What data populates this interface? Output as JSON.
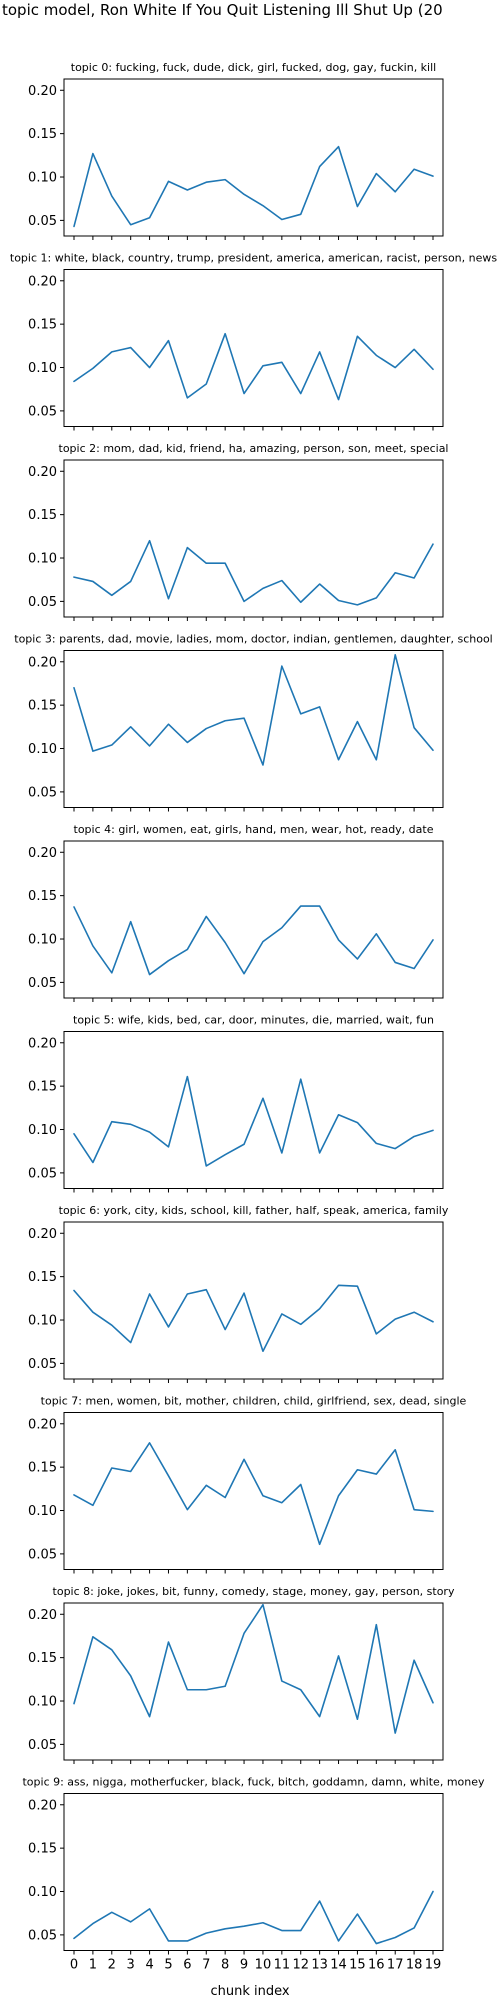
{
  "figure": {
    "suptitle": "topic model, Ron White If You Quit Listening Ill Shut Up (20",
    "xlabel": "chunk index"
  },
  "chart_data": {
    "type": "line",
    "x": [
      0,
      1,
      2,
      3,
      4,
      5,
      6,
      7,
      8,
      9,
      10,
      11,
      12,
      13,
      14,
      15,
      16,
      17,
      18,
      19
    ],
    "xticklabels": [
      "0",
      "1",
      "2",
      "3",
      "4",
      "5",
      "6",
      "7",
      "8",
      "9",
      "10",
      "11",
      "12",
      "13",
      "14",
      "15",
      "16",
      "17",
      "18",
      "19"
    ],
    "xlabel": "chunk index",
    "ylim": [
      0.032,
      0.213
    ],
    "yticks": [
      0.05,
      0.1,
      0.15,
      0.2
    ],
    "yticklabels": [
      "0.05",
      "0.10",
      "0.15",
      "0.20"
    ],
    "grid": false,
    "line_color": "#1f77b4",
    "panels": [
      {
        "title": "topic 0: fucking, fuck, dude, dick, girl, fucked, dog, gay, fuckin, kill",
        "values": [
          0.043,
          0.127,
          0.078,
          0.045,
          0.053,
          0.095,
          0.085,
          0.094,
          0.097,
          0.08,
          0.067,
          0.051,
          0.057,
          0.112,
          0.135,
          0.066,
          0.104,
          0.083,
          0.109,
          0.101
        ]
      },
      {
        "title": "topic 1: white, black, country, trump, president, america, american, racist, person, news",
        "values": [
          0.084,
          0.099,
          0.118,
          0.123,
          0.1,
          0.131,
          0.065,
          0.081,
          0.139,
          0.07,
          0.102,
          0.106,
          0.07,
          0.118,
          0.063,
          0.136,
          0.114,
          0.1,
          0.121,
          0.098
        ]
      },
      {
        "title": "topic 2: mom, dad, kid, friend, ha, amazing, person, son, meet, special",
        "values": [
          0.078,
          0.073,
          0.057,
          0.073,
          0.12,
          0.053,
          0.112,
          0.094,
          0.094,
          0.05,
          0.065,
          0.074,
          0.049,
          0.07,
          0.051,
          0.046,
          0.054,
          0.083,
          0.077,
          0.116
        ]
      },
      {
        "title": "topic 3: parents, dad, movie, ladies, mom, doctor, indian, gentlemen, daughter, school",
        "values": [
          0.17,
          0.097,
          0.104,
          0.125,
          0.103,
          0.128,
          0.107,
          0.123,
          0.132,
          0.135,
          0.081,
          0.195,
          0.14,
          0.148,
          0.087,
          0.131,
          0.087,
          0.208,
          0.124,
          0.098
        ]
      },
      {
        "title": "topic 4: girl, women, eat, girls, hand, men, wear, hot, ready, date",
        "values": [
          0.137,
          0.092,
          0.061,
          0.12,
          0.059,
          0.075,
          0.088,
          0.126,
          0.096,
          0.06,
          0.097,
          0.113,
          0.138,
          0.138,
          0.099,
          0.077,
          0.106,
          0.073,
          0.066,
          0.099
        ]
      },
      {
        "title": "topic 5: wife, kids, bed, car, door, minutes, die, married, wait, fun",
        "values": [
          0.095,
          0.062,
          0.109,
          0.106,
          0.097,
          0.08,
          0.161,
          0.058,
          0.071,
          0.083,
          0.136,
          0.073,
          0.158,
          0.073,
          0.117,
          0.108,
          0.084,
          0.078,
          0.092,
          0.099
        ]
      },
      {
        "title": "topic 6: york, city, kids, school, kill, father, half, speak, america, family",
        "values": [
          0.134,
          0.109,
          0.094,
          0.074,
          0.13,
          0.092,
          0.13,
          0.135,
          0.089,
          0.131,
          0.064,
          0.107,
          0.095,
          0.113,
          0.14,
          0.139,
          0.084,
          0.101,
          0.109,
          0.098
        ]
      },
      {
        "title": "topic 7: men, women, bit, mother, children, child, girlfriend, sex, dead, single",
        "values": [
          0.118,
          0.106,
          0.149,
          0.145,
          0.178,
          0.14,
          0.101,
          0.129,
          0.115,
          0.159,
          0.117,
          0.109,
          0.13,
          0.061,
          0.117,
          0.147,
          0.142,
          0.17,
          0.101,
          0.099
        ]
      },
      {
        "title": "topic 8: joke, jokes, bit, funny, comedy, stage, money, gay, person, story",
        "values": [
          0.097,
          0.174,
          0.159,
          0.129,
          0.082,
          0.168,
          0.113,
          0.113,
          0.117,
          0.178,
          0.211,
          0.123,
          0.113,
          0.082,
          0.152,
          0.079,
          0.188,
          0.063,
          0.147,
          0.098
        ]
      },
      {
        "title": "topic 9: ass, nigga, motherfucker, black, fuck, bitch, goddamn, damn, white, money",
        "values": [
          0.046,
          0.063,
          0.076,
          0.065,
          0.08,
          0.043,
          0.043,
          0.052,
          0.057,
          0.06,
          0.064,
          0.055,
          0.055,
          0.089,
          0.043,
          0.074,
          0.04,
          0.047,
          0.058,
          0.1
        ]
      }
    ]
  }
}
